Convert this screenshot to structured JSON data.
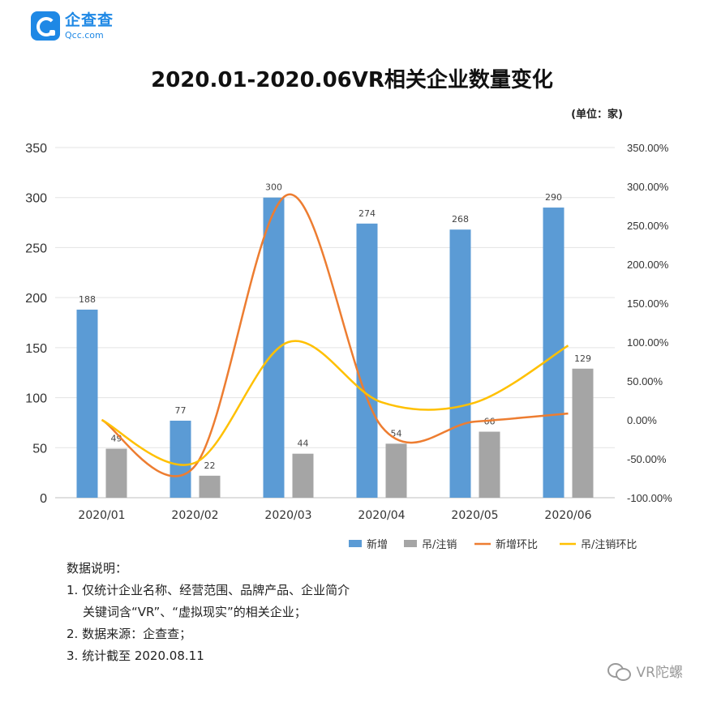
{
  "logo": {
    "name": "企查查",
    "sub": "Qcc.com"
  },
  "chart_data": {
    "type": "bar",
    "title": "2020.01-2020.06VR相关企业数量变化",
    "unit_note": "(单位：家)",
    "categories": [
      "2020/01",
      "2020/02",
      "2020/03",
      "2020/04",
      "2020/05",
      "2020/06"
    ],
    "ylim_left": [
      0,
      350
    ],
    "yticks_left": [
      "0",
      "50",
      "100",
      "150",
      "200",
      "250",
      "300",
      "350"
    ],
    "ylim_right": [
      -100,
      350
    ],
    "yticks_right": [
      "-100.00%",
      "-50.00%",
      "0.00%",
      "50.00%",
      "100.00%",
      "150.00%",
      "200.00%",
      "250.00%",
      "300.00%",
      "350.00%"
    ],
    "grid": true,
    "legend_position": "bottom-right",
    "series": [
      {
        "name": "新增",
        "kind": "bar",
        "axis": "left",
        "color": "#5b9bd5",
        "values": [
          188,
          77,
          300,
          274,
          268,
          290
        ]
      },
      {
        "name": "吊/注销",
        "kind": "bar",
        "axis": "left",
        "color": "#a5a5a5",
        "values": [
          49,
          22,
          44,
          54,
          66,
          129
        ]
      },
      {
        "name": "新增环比",
        "kind": "line",
        "axis": "right",
        "color": "#ed7d31",
        "values": [
          0,
          -59.04,
          289.61,
          -8.67,
          -2.19,
          8.21
        ]
      },
      {
        "name": "吊/注销环比",
        "kind": "line",
        "axis": "right",
        "color": "#ffc000",
        "values": [
          0,
          -55.1,
          100.0,
          22.73,
          22.22,
          95.45
        ]
      }
    ]
  },
  "notes": {
    "heading": "数据说明：",
    "line1": "1. 仅统计企业名称、经营范围、品牌产品、企业简介",
    "line1b": "关键词含“VR”、“虚拟现实”的相关企业；",
    "line2": "2. 数据来源：企查查；",
    "line3": "3. 统计截至 2020.08.11"
  },
  "watermark": {
    "text": "VR陀螺",
    "icon": "wechat-icon"
  }
}
